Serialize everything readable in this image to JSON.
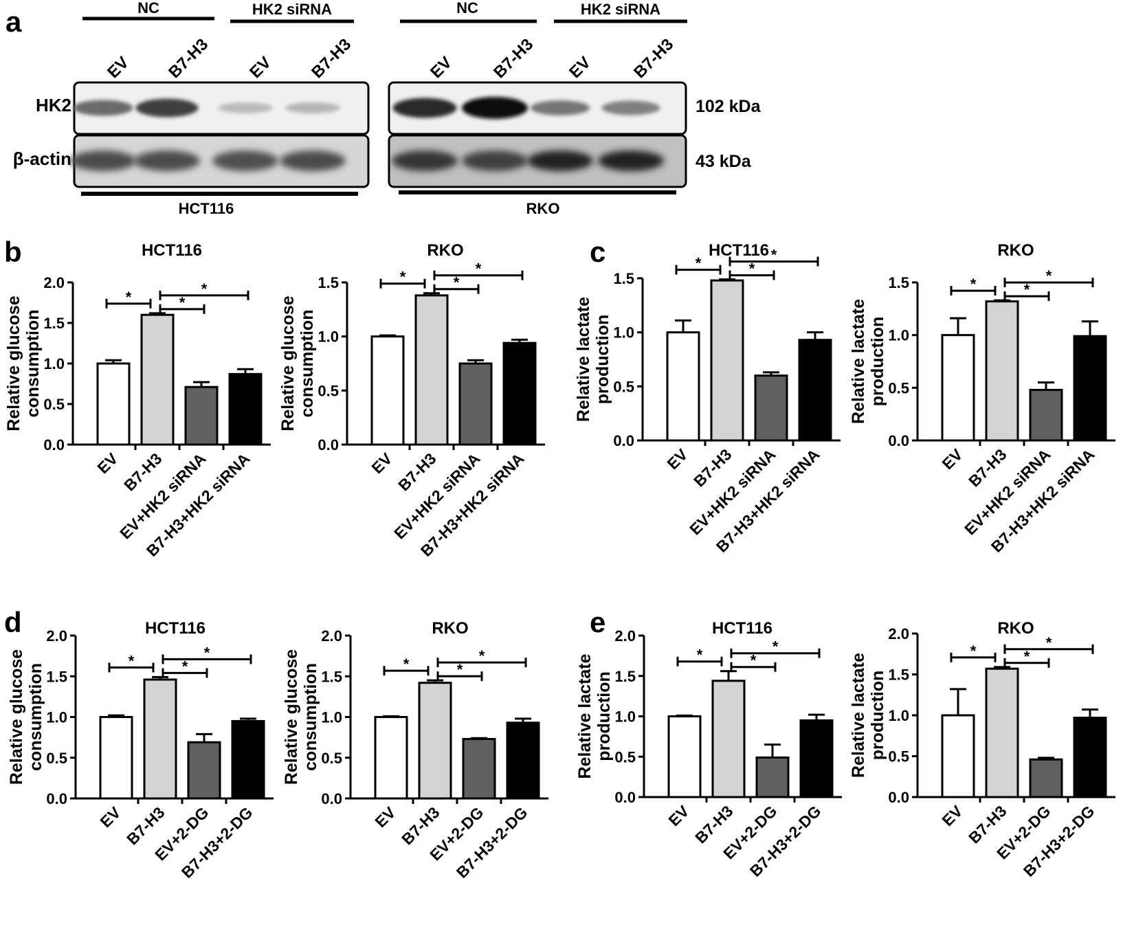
{
  "panel_a": {
    "letter": "a",
    "group_labels": {
      "nc": "NC",
      "hk2_sirna": "HK2 siRNA"
    },
    "lane_labels": [
      "EV",
      "B7-H3",
      "EV",
      "B7-H3"
    ],
    "row_labels": [
      "HK2",
      "β-actin"
    ],
    "sizes": [
      "102 kDa",
      "43 kDa"
    ],
    "cell_lines": [
      "HCT116",
      "RKO"
    ],
    "band_intensity": {
      "HCT116": {
        "HK2": [
          0.55,
          0.75,
          0.18,
          0.2
        ],
        "β-actin": [
          0.7,
          0.7,
          0.68,
          0.7
        ]
      },
      "RKO": {
        "HK2": [
          0.85,
          1.0,
          0.5,
          0.45
        ],
        "β-actin": [
          0.8,
          0.75,
          0.9,
          0.9
        ]
      }
    }
  },
  "panel_letters": {
    "b": "b",
    "c": "c",
    "d": "d",
    "e": "e"
  },
  "chart_data": [
    {
      "type": "bar",
      "panel": "b",
      "title": "HCT116",
      "ylabel": "Relative glucose consumption",
      "ylim": [
        0,
        2.0
      ],
      "yticks": [
        "0.0",
        "0.5",
        "1.0",
        "1.5",
        "2.0"
      ],
      "categories": [
        "EV",
        "B7-H3",
        "EV+HK2 siRNA",
        "B7-H3+HK2 siRNA"
      ],
      "values": [
        1.0,
        1.6,
        0.71,
        0.87
      ],
      "errors": [
        0.04,
        0.02,
        0.06,
        0.06
      ],
      "bar_colors": [
        "#ffffff",
        "#d4d4d4",
        "#606060",
        "#000000"
      ],
      "significance": [
        {
          "from": 0,
          "to": 1,
          "label": "*"
        },
        {
          "from": 1,
          "to": 2,
          "label": "*"
        },
        {
          "from": 1,
          "to": 3,
          "label": "*"
        }
      ]
    },
    {
      "type": "bar",
      "panel": "b",
      "title": "RKO",
      "ylabel": "Relative glucose consumption",
      "ylim": [
        0,
        1.5
      ],
      "yticks": [
        "0.0",
        "0.5",
        "1.0",
        "1.5"
      ],
      "categories": [
        "EV",
        "B7-H3",
        "EV+HK2 siRNA",
        "B7-H3+HK2 siRNA"
      ],
      "values": [
        1.0,
        1.38,
        0.75,
        0.94
      ],
      "errors": [
        0.01,
        0.02,
        0.03,
        0.03
      ],
      "bar_colors": [
        "#ffffff",
        "#d4d4d4",
        "#606060",
        "#000000"
      ],
      "significance": [
        {
          "from": 0,
          "to": 1,
          "label": "*"
        },
        {
          "from": 1,
          "to": 2,
          "label": "*"
        },
        {
          "from": 1,
          "to": 3,
          "label": "*"
        }
      ]
    },
    {
      "type": "bar",
      "panel": "c",
      "title": "HCT116",
      "ylabel": "Relative lactate production",
      "ylim": [
        0,
        1.5
      ],
      "yticks": [
        "0.0",
        "0.5",
        "1.0",
        "1.5"
      ],
      "categories": [
        "EV",
        "B7-H3",
        "EV+HK2 siRNA",
        "B7-H3+HK2 siRNA"
      ],
      "values": [
        1.0,
        1.48,
        0.6,
        0.93
      ],
      "errors": [
        0.11,
        0.01,
        0.03,
        0.07
      ],
      "bar_colors": [
        "#ffffff",
        "#d4d4d4",
        "#606060",
        "#000000"
      ],
      "significance": [
        {
          "from": 0,
          "to": 1,
          "label": "*"
        },
        {
          "from": 1,
          "to": 2,
          "label": "*"
        },
        {
          "from": 1,
          "to": 3,
          "label": "*"
        }
      ]
    },
    {
      "type": "bar",
      "panel": "c",
      "title": "RKO",
      "ylabel": "Relative lactate production",
      "ylim": [
        0,
        1.5
      ],
      "yticks": [
        "0.0",
        "0.5",
        "1.0",
        "1.5"
      ],
      "categories": [
        "EV",
        "B7-H3",
        "EV+HK2 siRNA",
        "B7-H3+HK2 siRNA"
      ],
      "values": [
        1.0,
        1.32,
        0.48,
        0.99
      ],
      "errors": [
        0.16,
        0.01,
        0.07,
        0.14
      ],
      "bar_colors": [
        "#ffffff",
        "#d4d4d4",
        "#606060",
        "#000000"
      ],
      "significance": [
        {
          "from": 0,
          "to": 1,
          "label": "*"
        },
        {
          "from": 1,
          "to": 2,
          "label": "*"
        },
        {
          "from": 1,
          "to": 3,
          "label": "*"
        }
      ]
    },
    {
      "type": "bar",
      "panel": "d",
      "title": "HCT116",
      "ylabel": "Relative glucose consumption",
      "ylim": [
        0,
        2.0
      ],
      "yticks": [
        "0.0",
        "0.5",
        "1.0",
        "1.5",
        "2.0"
      ],
      "categories": [
        "EV",
        "B7-H3",
        "EV+2-DG",
        "B7-H3+2-DG"
      ],
      "values": [
        1.0,
        1.46,
        0.69,
        0.95
      ],
      "errors": [
        0.02,
        0.03,
        0.1,
        0.03
      ],
      "bar_colors": [
        "#ffffff",
        "#d4d4d4",
        "#606060",
        "#000000"
      ],
      "significance": [
        {
          "from": 0,
          "to": 1,
          "label": "*"
        },
        {
          "from": 1,
          "to": 2,
          "label": "*"
        },
        {
          "from": 1,
          "to": 3,
          "label": "*"
        }
      ]
    },
    {
      "type": "bar",
      "panel": "d",
      "title": "RKO",
      "ylabel": "Relative glucose consumption",
      "ylim": [
        0,
        2.0
      ],
      "yticks": [
        "0.0",
        "0.5",
        "1.0",
        "1.5",
        "2.0"
      ],
      "categories": [
        "EV",
        "B7-H3",
        "EV+2-DG",
        "B7-H3+2-DG"
      ],
      "values": [
        1.0,
        1.42,
        0.73,
        0.93
      ],
      "errors": [
        0.01,
        0.03,
        0.01,
        0.05
      ],
      "bar_colors": [
        "#ffffff",
        "#d4d4d4",
        "#606060",
        "#000000"
      ],
      "significance": [
        {
          "from": 0,
          "to": 1,
          "label": "*"
        },
        {
          "from": 1,
          "to": 2,
          "label": "*"
        },
        {
          "from": 1,
          "to": 3,
          "label": "*"
        }
      ]
    },
    {
      "type": "bar",
      "panel": "e",
      "title": "HCT116",
      "ylabel": "Relative lactate production",
      "ylim": [
        0,
        2.0
      ],
      "yticks": [
        "0.0",
        "0.5",
        "1.0",
        "1.5",
        "2.0"
      ],
      "categories": [
        "EV",
        "B7-H3",
        "EV+2-DG",
        "B7-H3+2-DG"
      ],
      "values": [
        1.0,
        1.44,
        0.49,
        0.95
      ],
      "errors": [
        0.01,
        0.12,
        0.16,
        0.07
      ],
      "bar_colors": [
        "#ffffff",
        "#d4d4d4",
        "#606060",
        "#000000"
      ],
      "significance": [
        {
          "from": 0,
          "to": 1,
          "label": "*"
        },
        {
          "from": 1,
          "to": 2,
          "label": "*"
        },
        {
          "from": 1,
          "to": 3,
          "label": "*"
        }
      ]
    },
    {
      "type": "bar",
      "panel": "e",
      "title": "RKO",
      "ylabel": "Relative lactate production",
      "ylim": [
        0,
        2.0
      ],
      "yticks": [
        "0.0",
        "0.5",
        "1.0",
        "1.5",
        "2.0"
      ],
      "categories": [
        "EV",
        "B7-H3",
        "EV+2-DG",
        "B7-H3+2-DG"
      ],
      "values": [
        1.0,
        1.57,
        0.46,
        0.97
      ],
      "errors": [
        0.32,
        0.02,
        0.02,
        0.1
      ],
      "bar_colors": [
        "#ffffff",
        "#d4d4d4",
        "#606060",
        "#000000"
      ],
      "significance": [
        {
          "from": 0,
          "to": 1,
          "label": "*"
        },
        {
          "from": 1,
          "to": 2,
          "label": "*"
        },
        {
          "from": 1,
          "to": 3,
          "label": "*"
        }
      ]
    }
  ]
}
